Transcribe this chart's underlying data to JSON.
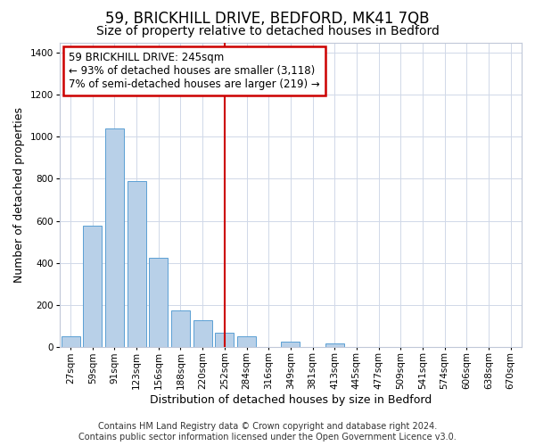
{
  "title": "59, BRICKHILL DRIVE, BEDFORD, MK41 7QB",
  "subtitle": "Size of property relative to detached houses in Bedford",
  "xlabel": "Distribution of detached houses by size in Bedford",
  "ylabel": "Number of detached properties",
  "categories": [
    "27sqm",
    "59sqm",
    "91sqm",
    "123sqm",
    "156sqm",
    "188sqm",
    "220sqm",
    "252sqm",
    "284sqm",
    "316sqm",
    "349sqm",
    "381sqm",
    "413sqm",
    "445sqm",
    "477sqm",
    "509sqm",
    "541sqm",
    "574sqm",
    "606sqm",
    "638sqm",
    "670sqm"
  ],
  "values": [
    50,
    575,
    1040,
    790,
    425,
    175,
    125,
    65,
    50,
    0,
    25,
    0,
    15,
    0,
    0,
    0,
    0,
    0,
    0,
    0,
    0
  ],
  "bar_color": "#b8d0e8",
  "bar_edge_color": "#5a9fd4",
  "vline_x": 7,
  "vline_color": "#cc0000",
  "annotation_line1": "59 BRICKHILL DRIVE: 245sqm",
  "annotation_line2": "← 93% of detached houses are smaller (3,118)",
  "annotation_line3": "7% of semi-detached houses are larger (219) →",
  "annotation_box_color": "#ffffff",
  "annotation_box_edge_color": "#cc0000",
  "ylim": [
    0,
    1450
  ],
  "yticks": [
    0,
    200,
    400,
    600,
    800,
    1000,
    1200,
    1400
  ],
  "footnote": "Contains HM Land Registry data © Crown copyright and database right 2024.\nContains public sector information licensed under the Open Government Licence v3.0.",
  "background_color": "#ffffff",
  "grid_color": "#d0d8e8",
  "title_fontsize": 12,
  "subtitle_fontsize": 10,
  "axis_label_fontsize": 9,
  "tick_fontsize": 7.5,
  "annotation_fontsize": 8.5,
  "footnote_fontsize": 7
}
